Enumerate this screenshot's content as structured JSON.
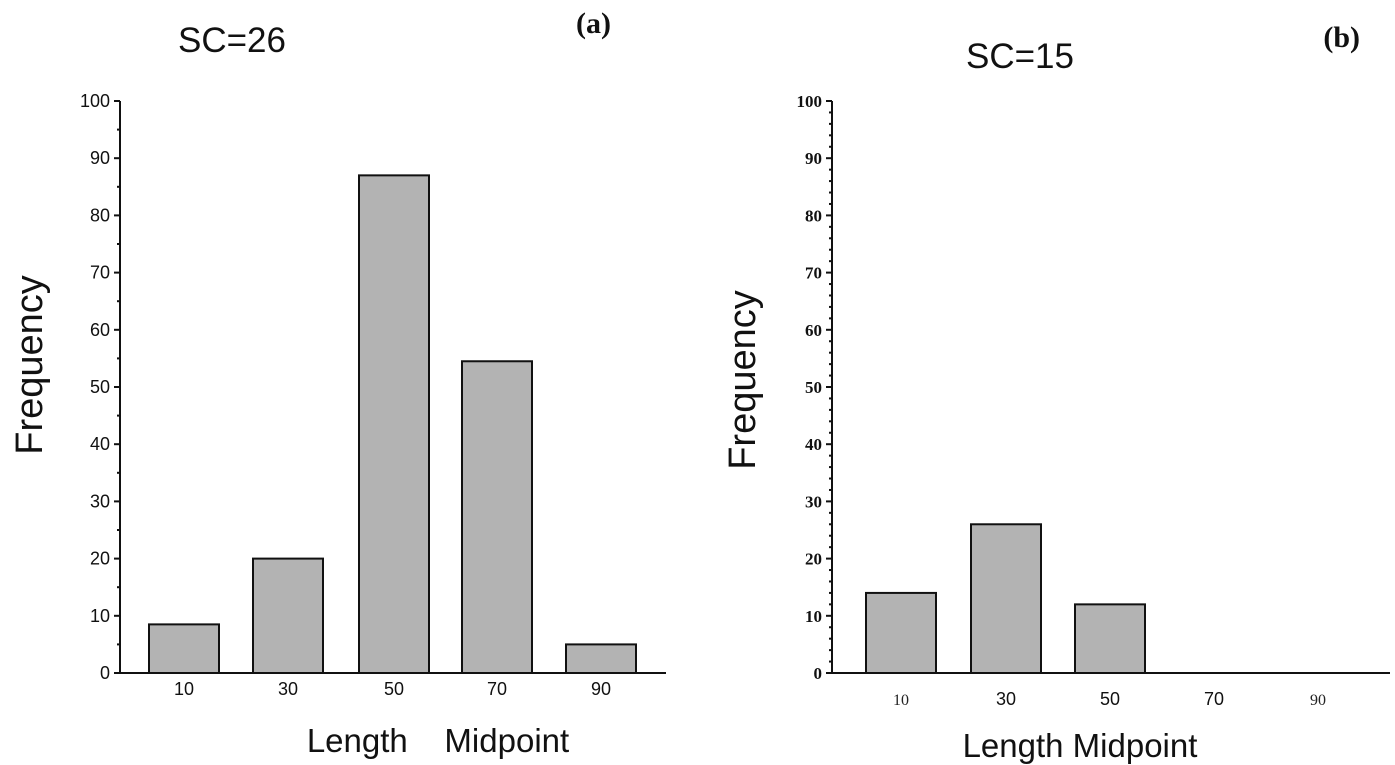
{
  "chart_data": [
    {
      "type": "bar",
      "panel": "(a)",
      "title": "SC=26",
      "xlabel": "Length    Midpoint",
      "ylabel": "Frequency",
      "categories": [
        "10",
        "30",
        "50",
        "70",
        "90"
      ],
      "values": [
        8.5,
        20,
        87,
        54.5,
        5
      ],
      "ylim": [
        0,
        100
      ],
      "yticks": [
        0,
        10,
        20,
        30,
        40,
        50,
        60,
        70,
        80,
        90,
        100
      ],
      "grid": false,
      "bar_color": "#b3b3b3"
    },
    {
      "type": "bar",
      "panel": "(b)",
      "title": "SC=15",
      "xlabel": "Length Midpoint",
      "ylabel": "Frequency",
      "categories": [
        "10",
        "30",
        "50",
        "70",
        "90"
      ],
      "values": [
        14,
        26,
        12,
        0,
        0
      ],
      "ylim": [
        0,
        100
      ],
      "yticks": [
        0,
        10,
        20,
        30,
        40,
        50,
        60,
        70,
        80,
        90,
        100
      ],
      "grid": false,
      "bar_color": "#b3b3b3"
    }
  ]
}
